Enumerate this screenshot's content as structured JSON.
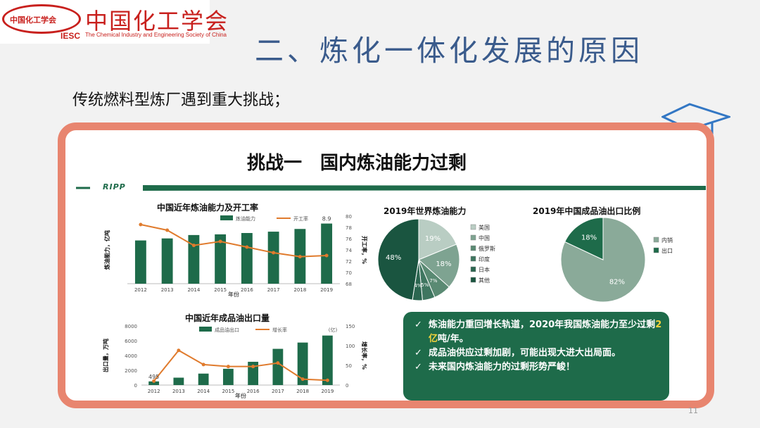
{
  "logo": {
    "badge": "中国化工学会",
    "abbr": "IESC",
    "name_cn": "中国化工学会",
    "name_en": "The Chemical Industry and Engineering Society of China"
  },
  "slide": {
    "title": "二、炼化一体化发展的原因",
    "subtitle": "传统燃料型炼厂遇到重大挑战；",
    "page": "11"
  },
  "inner": {
    "title": "挑战一　国内炼油能力过剩",
    "logo": "RIPP"
  },
  "colors": {
    "dark_green": "#1e6b4a",
    "frame": "#e8856f",
    "orange": "#e07b2d",
    "title_blue": "#3a5b8c"
  },
  "chart_data": [
    {
      "type": "bar",
      "title": "中国近年炼油能力及开工率",
      "categories": [
        "2012",
        "2013",
        "2014",
        "2015",
        "2016",
        "2017",
        "2018",
        "2019"
      ],
      "series": [
        {
          "name": "炼油能力",
          "type": "bar",
          "values": [
            6.4,
            6.7,
            7.2,
            7.3,
            7.5,
            7.7,
            8.1,
            8.9
          ]
        },
        {
          "name": "开工率",
          "type": "line",
          "axis": "right",
          "values": [
            78.5,
            77.5,
            74.8,
            75.5,
            74.5,
            73.5,
            72.8,
            73
          ]
        }
      ],
      "ylabel": "炼油能力，亿吨",
      "y2label": "开工率，%",
      "xlabel": "年份",
      "ylim": [
        0,
        10
      ],
      "y2lim": [
        68,
        80
      ],
      "y2ticks": [
        "68",
        "70",
        "72",
        "74",
        "76",
        "78",
        "80"
      ],
      "annotations": [
        "8.9"
      ]
    },
    {
      "type": "bar",
      "title": "中国近年成品油出口量",
      "categories": [
        "2012",
        "2013",
        "2014",
        "2015",
        "2016",
        "2017",
        "2018",
        "2019"
      ],
      "series": [
        {
          "name": "成品油出口",
          "type": "bar",
          "values": [
            495,
            1000,
            1550,
            2200,
            3150,
            4900,
            5750,
            6700
          ]
        },
        {
          "name": "增长率",
          "type": "line",
          "axis": "right",
          "values": [
            10,
            88,
            52,
            47,
            47,
            56,
            15,
            12
          ]
        }
      ],
      "ylabel": "出口量，万吨",
      "y2label": "增长率，%",
      "xlabel": "年份",
      "ylim": [
        0,
        8000
      ],
      "yticks": [
        "0",
        "2000",
        "4000",
        "6000",
        "8000"
      ],
      "y2lim": [
        0,
        150
      ],
      "y2ticks": [
        "0",
        "50",
        "100",
        "150"
      ],
      "annotations": [
        "495",
        "(亿)"
      ]
    },
    {
      "type": "pie",
      "title": "2019年世界炼油能力",
      "labels": [
        "美国",
        "中国",
        "俄罗斯",
        "印度",
        "日本",
        "其他"
      ],
      "values": [
        19,
        18,
        7,
        5,
        4,
        48
      ],
      "display_labels": [
        "19%",
        "18%",
        "7%",
        "5%",
        "4%",
        "48%"
      ]
    },
    {
      "type": "pie",
      "title": "2019年中国成品油出口比例",
      "labels": [
        "内销",
        "出口"
      ],
      "values": [
        82,
        18
      ],
      "display_labels": [
        "82%",
        "18%"
      ]
    }
  ],
  "summary": {
    "mark": "✓",
    "b1_pre": "炼油能力重回增长轨道，2020年我国炼油能力至少过剩",
    "b1_hl": "2亿",
    "b1_post": "吨/年。",
    "b2": "成品油供应过剩加剧，可能出现大进大出局面。",
    "b3": "未来国内炼油能力的过剩形势严峻！"
  }
}
